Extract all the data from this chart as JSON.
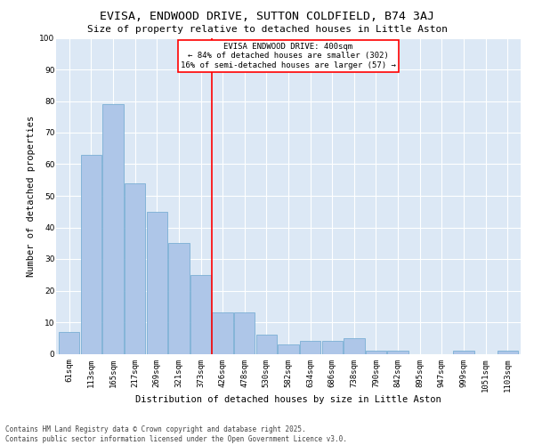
{
  "title": "EVISA, ENDWOOD DRIVE, SUTTON COLDFIELD, B74 3AJ",
  "subtitle": "Size of property relative to detached houses in Little Aston",
  "xlabel": "Distribution of detached houses by size in Little Aston",
  "ylabel": "Number of detached properties",
  "categories": [
    "61sqm",
    "113sqm",
    "165sqm",
    "217sqm",
    "269sqm",
    "321sqm",
    "373sqm",
    "426sqm",
    "478sqm",
    "530sqm",
    "582sqm",
    "634sqm",
    "686sqm",
    "738sqm",
    "790sqm",
    "842sqm",
    "895sqm",
    "947sqm",
    "999sqm",
    "1051sqm",
    "1103sqm"
  ],
  "values": [
    7,
    63,
    79,
    54,
    45,
    35,
    25,
    13,
    13,
    6,
    3,
    4,
    4,
    5,
    1,
    1,
    0,
    0,
    1,
    0,
    1
  ],
  "bar_color": "#aec6e8",
  "bar_edge_color": "#7aafd4",
  "annotation_text": "EVISA ENDWOOD DRIVE: 400sqm\n← 84% of detached houses are smaller (302)\n16% of semi-detached houses are larger (57) →",
  "annotation_box_color": "white",
  "annotation_box_edge_color": "red",
  "vline_color": "red",
  "vline_x": 6.5,
  "ylim": [
    0,
    100
  ],
  "yticks": [
    0,
    10,
    20,
    30,
    40,
    50,
    60,
    70,
    80,
    90,
    100
  ],
  "background_color": "#dce8f5",
  "grid_color": "white",
  "footer": "Contains HM Land Registry data © Crown copyright and database right 2025.\nContains public sector information licensed under the Open Government Licence v3.0.",
  "title_fontsize": 9.5,
  "subtitle_fontsize": 8,
  "label_fontsize": 7.5,
  "tick_fontsize": 6.5,
  "annotation_fontsize": 6.5,
  "footer_fontsize": 5.5
}
